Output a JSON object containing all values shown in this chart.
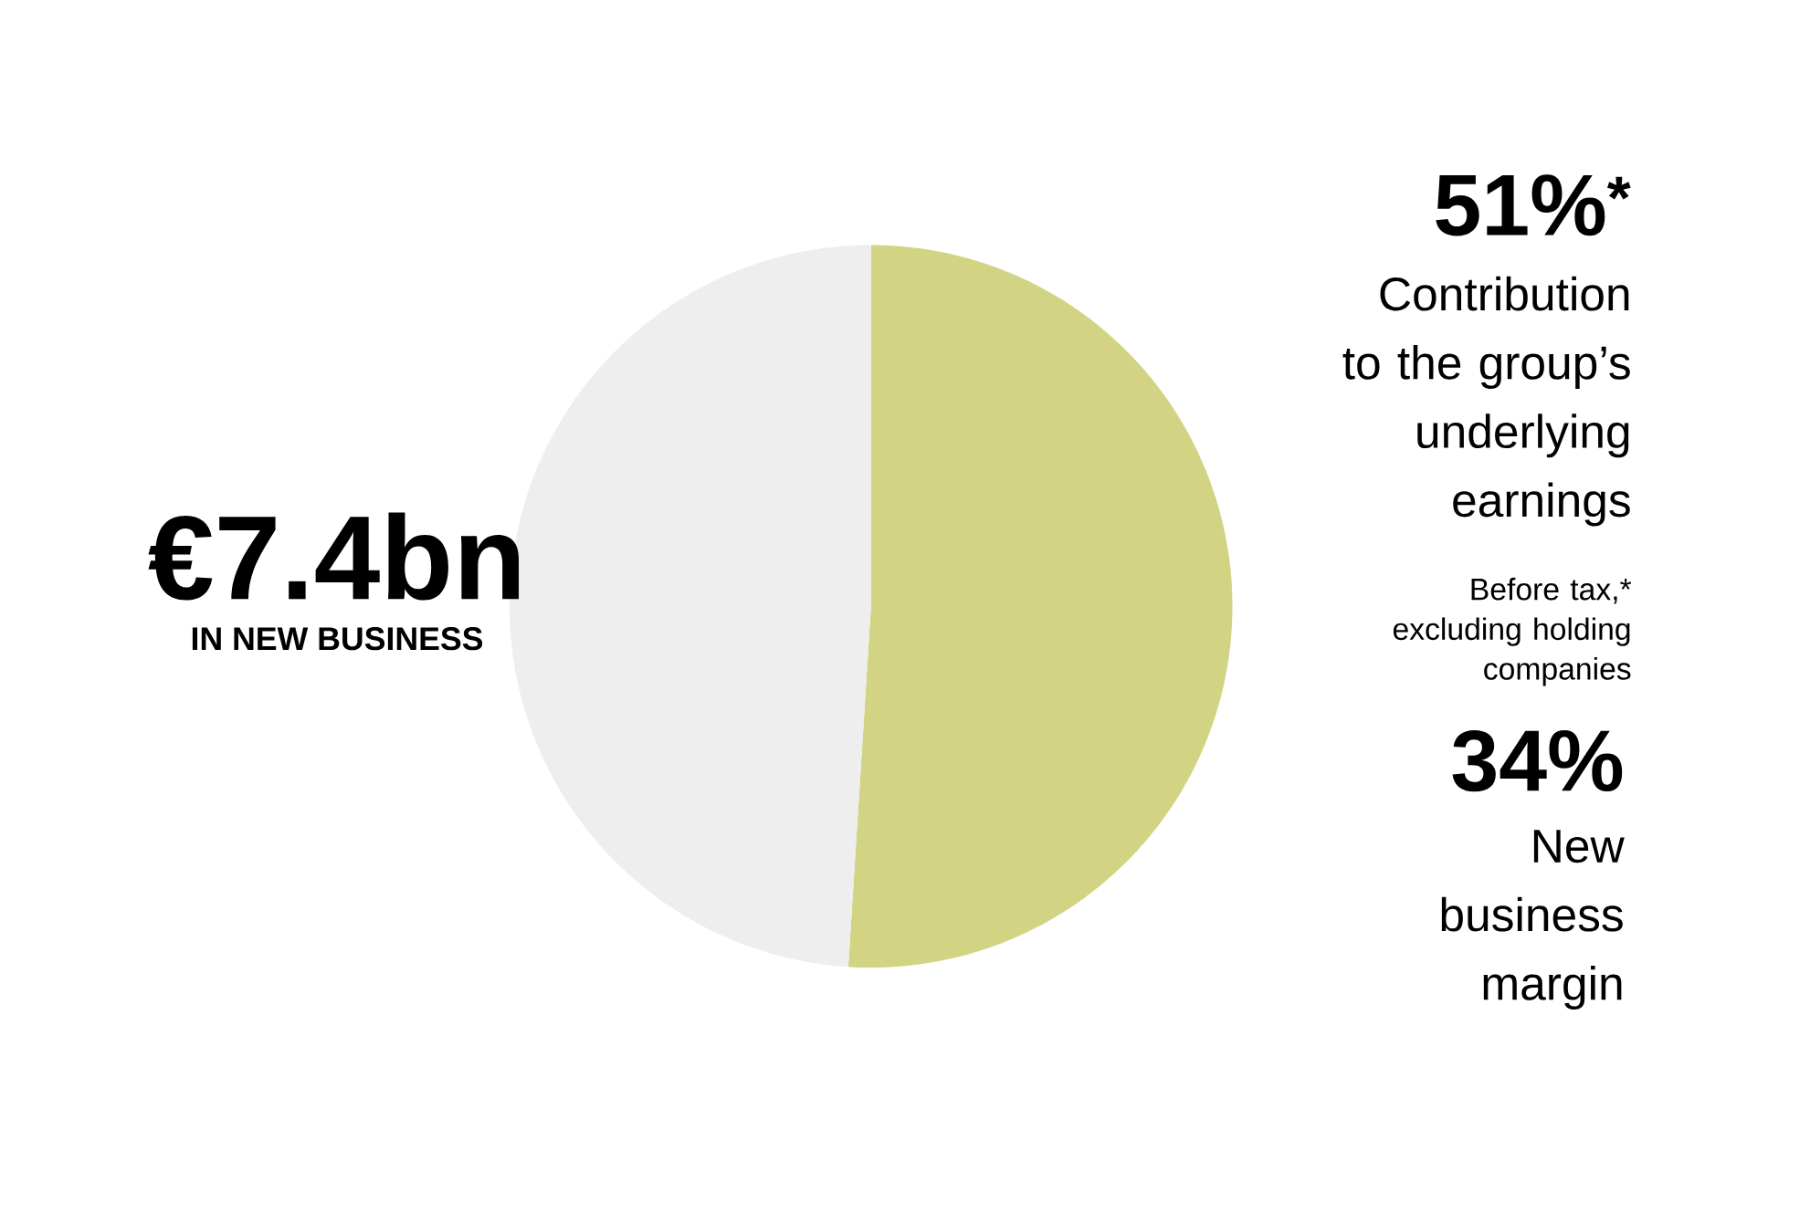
{
  "chart_data": {
    "type": "pie",
    "categories": [
      "Contribution to the group’s underlying earnings",
      null
    ],
    "values": [
      51,
      49
    ],
    "colors": [
      "#d2d483",
      "#eeeeee"
    ],
    "value_labels": [
      "51%$^{*}$",
      null
    ],
    "annotations": [
      "€7.4bn",
      "IN NEW BUSINESS",
      "Before tax,* excluding holding companies",
      "34%",
      "New business margin"
    ]
  }
}
